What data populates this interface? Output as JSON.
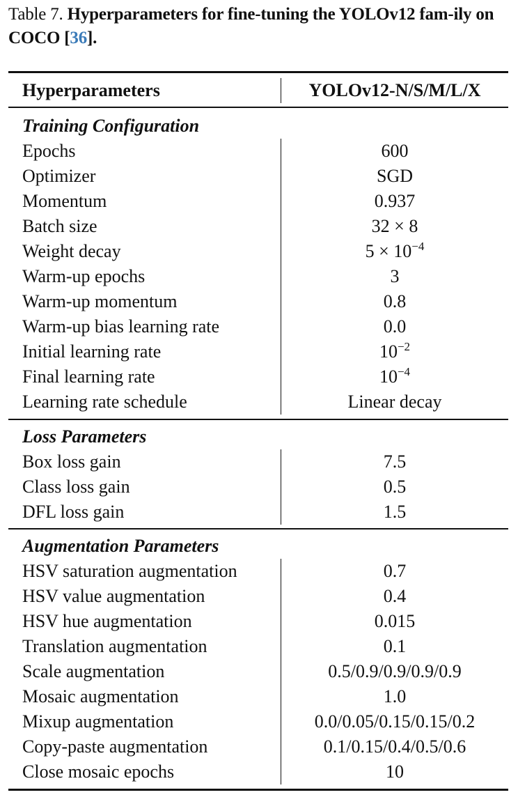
{
  "caption": {
    "label": "Table 7.",
    "title_before": "Hyperparameters for fine-tuning the YOLOv12 fam-ily on COCO [",
    "citation": "36",
    "title_after": "].",
    "citation_color": "#3b7bb8"
  },
  "table": {
    "headers": [
      "Hyperparameters",
      "YOLOv12-N/S/M/L/X"
    ],
    "sections": [
      {
        "title": "Training Configuration",
        "rows": [
          {
            "name": "Epochs",
            "value": "600"
          },
          {
            "name": "Optimizer",
            "value": "SGD"
          },
          {
            "name": "Momentum",
            "value": "0.937"
          },
          {
            "name": "Batch size",
            "value": "32 × 8"
          },
          {
            "name": "Weight decay",
            "value": "5 × 10",
            "sup": "−4"
          },
          {
            "name": "Warm-up epochs",
            "value": "3"
          },
          {
            "name": "Warm-up momentum",
            "value": "0.8"
          },
          {
            "name": "Warm-up bias learning rate",
            "value": "0.0"
          },
          {
            "name": "Initial learning rate",
            "value": "10",
            "sup": "−2"
          },
          {
            "name": "Final learning rate",
            "value": "10",
            "sup": "−4"
          },
          {
            "name": "Learning rate schedule",
            "value": "Linear decay"
          }
        ]
      },
      {
        "title": "Loss Parameters",
        "rows": [
          {
            "name": "Box loss gain",
            "value": "7.5"
          },
          {
            "name": "Class loss gain",
            "value": "0.5"
          },
          {
            "name": "DFL loss gain",
            "value": "1.5"
          }
        ]
      },
      {
        "title": "Augmentation Parameters",
        "rows": [
          {
            "name": "HSV saturation augmentation",
            "value": "0.7"
          },
          {
            "name": "HSV value augmentation",
            "value": "0.4"
          },
          {
            "name": "HSV hue augmentation",
            "value": "0.015"
          },
          {
            "name": "Translation augmentation",
            "value": "0.1"
          },
          {
            "name": "Scale augmentation",
            "value": "0.5/0.9/0.9/0.9/0.9"
          },
          {
            "name": "Mosaic augmentation",
            "value": "1.0"
          },
          {
            "name": "Mixup augmentation",
            "value": "0.0/0.05/0.15/0.15/0.2"
          },
          {
            "name": "Copy-paste augmentation",
            "value": "0.1/0.15/0.4/0.5/0.6"
          },
          {
            "name": "Close mosaic epochs",
            "value": "10"
          }
        ]
      }
    ]
  }
}
